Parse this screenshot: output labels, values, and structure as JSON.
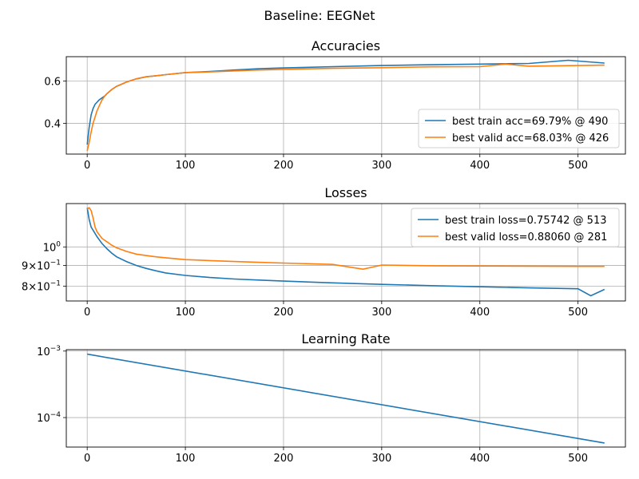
{
  "suptitle": "Baseline: EEGNet",
  "colors": {
    "train": "#1f77b4",
    "valid": "#ff7f0e",
    "grid": "#b0b0b0"
  },
  "chart_data": [
    {
      "type": "line",
      "title": "Accuracies",
      "xlabel": "",
      "ylabel": "",
      "xlim": [
        -21.3,
        548.3
      ],
      "ylim": [
        0.255,
        0.715
      ],
      "x_ticks": [
        0,
        100,
        200,
        300,
        400,
        500
      ],
      "y_ticks": [
        0.4,
        0.6
      ],
      "y_tick_labels": [
        "0.4",
        "0.6"
      ],
      "grid": true,
      "legend_position": "lower right",
      "series": [
        {
          "name": "best train acc=69.79% @ 490",
          "color_key": "train",
          "x": [
            0,
            2,
            4,
            6,
            8,
            10,
            12,
            15,
            18,
            20,
            25,
            30,
            35,
            40,
            50,
            60,
            70,
            80,
            100,
            125,
            150,
            175,
            200,
            250,
            300,
            350,
            400,
            450,
            490,
            527
          ],
          "y": [
            0.3,
            0.38,
            0.44,
            0.47,
            0.49,
            0.5,
            0.51,
            0.52,
            0.53,
            0.54,
            0.56,
            0.575,
            0.585,
            0.595,
            0.61,
            0.62,
            0.625,
            0.63,
            0.64,
            0.645,
            0.652,
            0.658,
            0.662,
            0.668,
            0.673,
            0.677,
            0.68,
            0.683,
            0.698,
            0.685
          ]
        },
        {
          "name": "best valid acc=68.03% @ 426",
          "color_key": "valid",
          "x": [
            0,
            2,
            4,
            6,
            8,
            10,
            12,
            15,
            18,
            20,
            25,
            30,
            35,
            40,
            50,
            60,
            70,
            80,
            100,
            125,
            150,
            175,
            200,
            250,
            300,
            350,
            400,
            426,
            450,
            527
          ],
          "y": [
            0.27,
            0.31,
            0.36,
            0.4,
            0.43,
            0.46,
            0.48,
            0.51,
            0.53,
            0.54,
            0.56,
            0.575,
            0.585,
            0.595,
            0.61,
            0.62,
            0.625,
            0.63,
            0.64,
            0.643,
            0.648,
            0.652,
            0.655,
            0.66,
            0.663,
            0.667,
            0.668,
            0.68,
            0.67,
            0.675
          ]
        }
      ]
    },
    {
      "type": "line",
      "title": "Losses",
      "xlabel": "",
      "ylabel": "",
      "yscale": "log",
      "xlim": [
        -21.3,
        548.3
      ],
      "ylim": [
        0.735,
        1.28
      ],
      "x_ticks": [
        0,
        100,
        200,
        300,
        400,
        500
      ],
      "y_ticks": [
        1.0,
        0.9,
        0.8
      ],
      "y_tick_labels": [
        "10^0",
        "9×10^-1",
        "8×10^-1"
      ],
      "grid": true,
      "legend_position": "upper right",
      "series": [
        {
          "name": "best train loss=0.75742 @ 513",
          "color_key": "train",
          "x": [
            0,
            2,
            4,
            6,
            8,
            10,
            15,
            20,
            25,
            30,
            40,
            50,
            60,
            70,
            80,
            100,
            125,
            150,
            175,
            200,
            250,
            300,
            350,
            400,
            450,
            500,
            513,
            527
          ],
          "y": [
            1.25,
            1.17,
            1.12,
            1.1,
            1.08,
            1.06,
            1.02,
            0.99,
            0.965,
            0.945,
            0.92,
            0.9,
            0.885,
            0.873,
            0.862,
            0.85,
            0.84,
            0.833,
            0.828,
            0.823,
            0.815,
            0.808,
            0.802,
            0.797,
            0.792,
            0.788,
            0.757,
            0.785
          ]
        },
        {
          "name": "best valid loss=0.88060 @ 281",
          "color_key": "valid",
          "x": [
            0,
            2,
            4,
            6,
            8,
            10,
            15,
            20,
            25,
            30,
            40,
            50,
            60,
            70,
            80,
            100,
            125,
            150,
            175,
            200,
            250,
            281,
            300,
            350,
            400,
            450,
            500,
            527
          ],
          "y": [
            1.24,
            1.25,
            1.23,
            1.18,
            1.12,
            1.09,
            1.05,
            1.03,
            1.01,
            0.995,
            0.975,
            0.96,
            0.952,
            0.945,
            0.94,
            0.93,
            0.925,
            0.92,
            0.916,
            0.912,
            0.905,
            0.881,
            0.902,
            0.898,
            0.897,
            0.896,
            0.895,
            0.895
          ]
        }
      ]
    },
    {
      "type": "line",
      "title": "Learning Rate",
      "xlabel": "",
      "ylabel": "",
      "yscale": "log",
      "xlim": [
        -21.3,
        548.3
      ],
      "ylim": [
        3.6e-05,
        0.00105
      ],
      "x_ticks": [
        0,
        100,
        200,
        300,
        400,
        500
      ],
      "y_ticks": [
        0.001,
        0.0001
      ],
      "y_tick_labels": [
        "10^-3",
        "10^-4"
      ],
      "grid": true,
      "series": [
        {
          "name": "",
          "color_key": "train",
          "x": [
            0,
            527
          ],
          "y": [
            0.0009,
            4.14e-05
          ]
        }
      ]
    }
  ]
}
